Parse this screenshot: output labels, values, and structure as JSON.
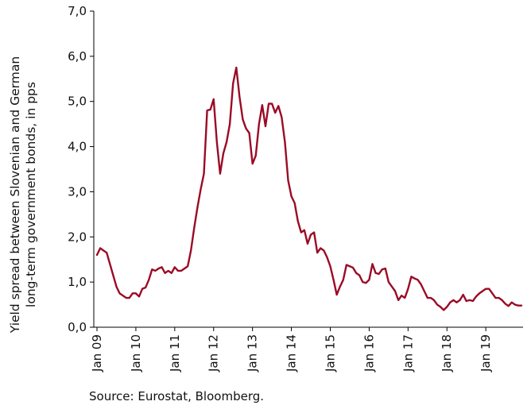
{
  "chart_data": {
    "type": "line",
    "ylabel_lines": [
      "Yield spread between Slovenian and German",
      "long-term government bonds, in pps"
    ],
    "ylim": [
      0,
      7
    ],
    "yticks": [
      0,
      1,
      2,
      3,
      4,
      5,
      6,
      7
    ],
    "ytick_labels": [
      "0,0",
      "1,0",
      "2,0",
      "3,0",
      "4,0",
      "5,0",
      "6,0",
      "7,0"
    ],
    "xticks": [
      0,
      12,
      24,
      36,
      48,
      60,
      72,
      84,
      96,
      108,
      120
    ],
    "xtick_labels": [
      "Jan 09",
      "Jan 10",
      "Jan 11",
      "Jan 12",
      "Jan 13",
      "Jan 14",
      "Jan 15",
      "Jan 16",
      "Jan 17",
      "Jan 18",
      "Jan 19"
    ],
    "grid": false,
    "line_color": "#9b0b25",
    "series": [
      {
        "start": "Jan 09",
        "frequency": "monthly",
        "values": [
          1.6,
          1.75,
          1.7,
          1.65,
          1.4,
          1.15,
          0.9,
          0.75,
          0.7,
          0.65,
          0.65,
          0.75,
          0.75,
          0.68,
          0.85,
          0.88,
          1.05,
          1.28,
          1.25,
          1.3,
          1.33,
          1.2,
          1.25,
          1.2,
          1.33,
          1.25,
          1.25,
          1.3,
          1.35,
          1.7,
          2.2,
          2.65,
          3.05,
          3.4,
          4.8,
          4.82,
          5.05,
          4.1,
          3.4,
          3.85,
          4.1,
          4.5,
          5.4,
          5.75,
          5.1,
          4.6,
          4.4,
          4.3,
          3.62,
          3.8,
          4.5,
          4.92,
          4.45,
          4.95,
          4.95,
          4.75,
          4.9,
          4.65,
          4.1,
          3.25,
          2.9,
          2.75,
          2.35,
          2.1,
          2.15,
          1.85,
          2.05,
          2.1,
          1.65,
          1.75,
          1.7,
          1.55,
          1.35,
          1.05,
          0.72,
          0.9,
          1.05,
          1.38,
          1.35,
          1.32,
          1.2,
          1.15,
          1.0,
          0.98,
          1.05,
          1.4,
          1.2,
          1.18,
          1.28,
          1.3,
          1.0,
          0.9,
          0.8,
          0.6,
          0.7,
          0.65,
          0.85,
          1.12,
          1.08,
          1.05,
          0.95,
          0.8,
          0.65,
          0.65,
          0.6,
          0.5,
          0.45,
          0.38,
          0.45,
          0.55,
          0.6,
          0.55,
          0.6,
          0.72,
          0.58,
          0.6,
          0.58,
          0.68,
          0.75,
          0.8,
          0.85,
          0.85,
          0.75,
          0.65,
          0.65,
          0.6,
          0.52,
          0.47,
          0.55,
          0.5,
          0.48,
          0.48
        ]
      }
    ]
  },
  "source": "Source: Eurostat, Bloomberg."
}
